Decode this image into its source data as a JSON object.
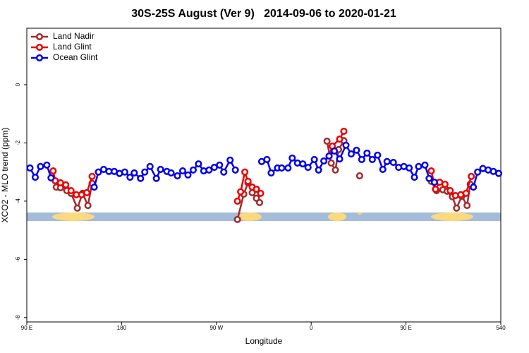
{
  "chart_data": {
    "type": "line",
    "title": "30S-25S August (Ver 9)   2014-09-06 to 2020-01-21",
    "xlabel": "Longitude",
    "ylabel": "XCO2 - MLO trend (ppm)",
    "xlim": [
      90,
      540
    ],
    "ylim": [
      -8.15,
      1.94
    ],
    "xticks": [
      {
        "value": 90,
        "label": "90 E"
      },
      180,
      {
        "value": 270,
        "label": "90 W"
      },
      {
        "value": 360,
        "label": "0"
      },
      {
        "value": 450,
        "label": "90 E"
      },
      540
    ],
    "yticks": [
      0,
      -2,
      -4,
      -6,
      -8
    ],
    "legend": "top-left",
    "series": [
      {
        "name": "Land Nadir",
        "color": "#a52a2a",
        "x": [
          118,
          122,
          128,
          132,
          138,
          143,
          148,
          152,
          null,
          290,
          296,
          300,
          304,
          308,
          311,
          null,
          375,
          379,
          383,
          386,
          391,
          null,
          406,
          null,
          474,
          479,
          485,
          489,
          494,
          498,
          503,
          508,
          511
        ],
        "values": [
          -3.52,
          -3.54,
          -3.64,
          -3.73,
          -4.24,
          -3.73,
          -4.15,
          -3.39,
          null,
          -4.63,
          -3.76,
          -3.37,
          -3.71,
          -3.9,
          -4.05,
          null,
          -1.94,
          -2.69,
          -2.93,
          -2.23,
          -1.92,
          null,
          -3.13,
          null,
          -3.32,
          -3.64,
          -3.61,
          -3.66,
          -3.85,
          -4.24,
          -3.83,
          -4.15,
          -3.42
        ]
      },
      {
        "name": "Land Glint",
        "color": "#ee0000",
        "x": [
          115,
          117,
          122,
          127,
          132,
          137,
          142,
          147,
          152,
          null,
          290,
          293,
          297,
          300,
          304,
          308,
          312,
          null,
          377,
          380,
          387,
          391,
          null,
          474,
          478,
          482,
          487,
          492,
          497,
          502,
          507,
          512
        ],
        "values": [
          -2.96,
          -3.3,
          -3.37,
          -3.44,
          -3.64,
          -3.78,
          -3.78,
          -3.71,
          -3.15,
          null,
          -4.0,
          -3.68,
          -3.0,
          -3.32,
          -3.52,
          -3.59,
          -3.73,
          null,
          -2.45,
          -2.11,
          -1.87,
          -1.6,
          null,
          -2.96,
          -3.59,
          -3.35,
          -3.42,
          -3.64,
          -3.81,
          -3.78,
          -3.73,
          -3.15
        ]
      },
      {
        "name": "Ocean Glint",
        "color": "#0000ee",
        "x": [
          93,
          98,
          103,
          109,
          113,
          null,
          154,
          158,
          163,
          168,
          173,
          178,
          183,
          188,
          192,
          198,
          202,
          207,
          213,
          217,
          223,
          227,
          233,
          238,
          243,
          248,
          253,
          258,
          263,
          268,
          273,
          277,
          283,
          288,
          null,
          313,
          318,
          322,
          328,
          332,
          338,
          342,
          347,
          352,
          357,
          363,
          367,
          372,
          377,
          382,
          387,
          393,
          398,
          403,
          408,
          413,
          418,
          423,
          428,
          432,
          438,
          443,
          448,
          453,
          458,
          462,
          468,
          472,
          477,
          null,
          514,
          518,
          523,
          528,
          533,
          538
        ],
        "values": [
          -2.86,
          -3.18,
          -2.81,
          -2.76,
          -3.2,
          null,
          -3.52,
          -3.0,
          -2.91,
          -2.98,
          -2.98,
          -3.05,
          -3.0,
          -3.18,
          -3.03,
          -3.22,
          -3.0,
          -2.81,
          -3.22,
          -2.91,
          -2.98,
          -3.03,
          -3.13,
          -2.96,
          -3.1,
          -2.93,
          -2.72,
          -2.96,
          -2.93,
          -2.84,
          -2.76,
          -3.0,
          -2.59,
          -2.93,
          null,
          -2.64,
          -2.57,
          -3.03,
          -2.86,
          -2.86,
          -2.86,
          -2.52,
          -2.69,
          -2.72,
          -2.84,
          -2.57,
          -2.93,
          -2.62,
          -2.45,
          -2.28,
          -2.55,
          -2.08,
          -2.38,
          -2.25,
          -2.57,
          -2.35,
          -2.57,
          -2.42,
          -2.91,
          -2.64,
          -2.67,
          -2.84,
          -2.81,
          -2.86,
          -3.18,
          -2.81,
          -2.76,
          -3.22,
          -3.35,
          null,
          -3.52,
          -3.0,
          -2.88,
          -2.93,
          -2.98,
          -3.05
        ]
      }
    ]
  }
}
